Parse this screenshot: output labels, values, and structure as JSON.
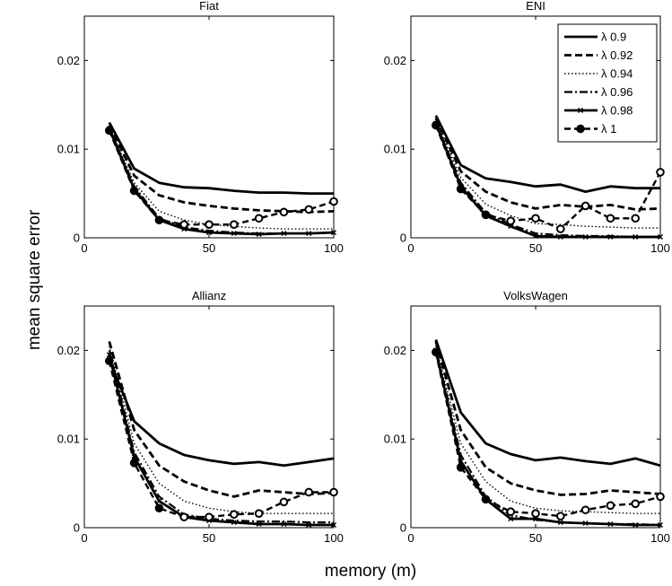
{
  "figure": {
    "ylabel": "mean square error",
    "xlabel": "memory (m)"
  },
  "legend": {
    "placement": "top-right of ENI panel",
    "entries": [
      {
        "label": "λ 0.9",
        "style": "solid-thick"
      },
      {
        "label": "λ 0.92",
        "style": "dashed-thick"
      },
      {
        "label": "λ 0.94",
        "style": "dotted-thin"
      },
      {
        "label": "λ 0.96",
        "style": "dashdot"
      },
      {
        "label": "λ 0.98",
        "style": "solid-x-markers"
      },
      {
        "label": "λ 1",
        "style": "dashed-circle-markers"
      }
    ]
  },
  "chart_data": [
    {
      "type": "line",
      "title": "Fiat",
      "xlim": [
        0,
        100
      ],
      "ylim": [
        0,
        0.025
      ],
      "xticks": [
        "0",
        "50",
        "100"
      ],
      "yticks": [
        "0",
        "0.01",
        "0.02"
      ],
      "x": [
        10,
        20,
        30,
        40,
        50,
        60,
        70,
        80,
        90,
        100
      ],
      "series": [
        {
          "name": "λ 0.9",
          "values": [
            0.013,
            0.0078,
            0.0062,
            0.0057,
            0.0056,
            0.0053,
            0.0051,
            0.0051,
            0.005,
            0.005
          ]
        },
        {
          "name": "λ 0.92",
          "values": [
            0.0127,
            0.007,
            0.0048,
            0.004,
            0.0036,
            0.0033,
            0.0031,
            0.003,
            0.0029,
            0.003
          ]
        },
        {
          "name": "λ 0.94",
          "values": [
            0.0125,
            0.0062,
            0.003,
            0.002,
            0.0015,
            0.0013,
            0.0011,
            0.001,
            0.001,
            0.001
          ]
        },
        {
          "name": "λ 0.96",
          "values": [
            0.0124,
            0.0058,
            0.0022,
            0.0012,
            0.0008,
            0.0006,
            0.0005,
            0.0005,
            0.0005,
            0.0006
          ]
        },
        {
          "name": "λ 0.98",
          "values": [
            0.0123,
            0.0055,
            0.002,
            0.001,
            0.0006,
            0.0005,
            0.0004,
            0.0005,
            0.0005,
            0.0006
          ]
        },
        {
          "name": "λ 1",
          "values": [
            0.0121,
            0.0053,
            0.002,
            0.0015,
            0.0015,
            0.0015,
            0.0022,
            0.0029,
            0.0032,
            0.0041
          ]
        }
      ]
    },
    {
      "type": "line",
      "title": "ENI",
      "xlim": [
        0,
        100
      ],
      "ylim": [
        0,
        0.025
      ],
      "xticks": [
        "0",
        "50",
        "100"
      ],
      "yticks": [
        "0",
        "0.01",
        "0.02"
      ],
      "x": [
        10,
        20,
        30,
        40,
        50,
        60,
        70,
        80,
        90,
        100
      ],
      "series": [
        {
          "name": "λ 0.9",
          "values": [
            0.0138,
            0.0082,
            0.0067,
            0.0063,
            0.0058,
            0.006,
            0.0052,
            0.0058,
            0.0056,
            0.0056
          ]
        },
        {
          "name": "λ 0.92",
          "values": [
            0.0135,
            0.0075,
            0.0052,
            0.004,
            0.0033,
            0.0037,
            0.0035,
            0.0037,
            0.0032,
            0.0033
          ]
        },
        {
          "name": "λ 0.94",
          "values": [
            0.0132,
            0.0068,
            0.0038,
            0.0025,
            0.0016,
            0.0015,
            0.0013,
            0.0012,
            0.0011,
            0.0011
          ]
        },
        {
          "name": "λ 0.96",
          "values": [
            0.013,
            0.0062,
            0.0028,
            0.0015,
            0.0005,
            0.0003,
            0.0002,
            0.0002,
            0.0001,
            0.0001
          ]
        },
        {
          "name": "λ 0.98",
          "values": [
            0.0129,
            0.0058,
            0.0025,
            0.0013,
            0.0002,
            0.0001,
            0.0001,
            0.0001,
            0.0001,
            0.0001
          ]
        },
        {
          "name": "λ 1",
          "values": [
            0.0127,
            0.0055,
            0.0026,
            0.0019,
            0.0022,
            0.001,
            0.0036,
            0.0022,
            0.0022,
            0.0074
          ]
        }
      ]
    },
    {
      "type": "line",
      "title": "Allianz",
      "xlim": [
        0,
        100
      ],
      "ylim": [
        0,
        0.025
      ],
      "xticks": [
        "0",
        "50",
        "100"
      ],
      "yticks": [
        "0",
        "0.01",
        "0.02"
      ],
      "x": [
        10,
        20,
        30,
        40,
        50,
        60,
        70,
        80,
        90,
        100
      ],
      "series": [
        {
          "name": "λ 0.9",
          "values": [
            0.019,
            0.012,
            0.0095,
            0.0082,
            0.0076,
            0.0072,
            0.0074,
            0.007,
            0.0074,
            0.0078
          ]
        },
        {
          "name": "λ 0.92",
          "values": [
            0.021,
            0.011,
            0.007,
            0.0052,
            0.0042,
            0.0035,
            0.0042,
            0.004,
            0.0038,
            0.0039
          ]
        },
        {
          "name": "λ 0.94",
          "values": [
            0.0205,
            0.0095,
            0.005,
            0.003,
            0.0022,
            0.0018,
            0.0016,
            0.0016,
            0.0016,
            0.0016
          ]
        },
        {
          "name": "λ 0.96",
          "values": [
            0.02,
            0.0085,
            0.0035,
            0.0015,
            0.001,
            0.0008,
            0.0007,
            0.0007,
            0.0006,
            0.0006
          ]
        },
        {
          "name": "λ 0.98",
          "values": [
            0.0195,
            0.008,
            0.003,
            0.0012,
            0.0008,
            0.0006,
            0.0004,
            0.0004,
            0.0003,
            0.0003
          ]
        },
        {
          "name": "λ 1",
          "values": [
            0.0188,
            0.0073,
            0.0022,
            0.0012,
            0.0012,
            0.0015,
            0.0016,
            0.0029,
            0.004,
            0.004
          ]
        }
      ]
    },
    {
      "type": "line",
      "title": "VolksWagen",
      "xlim": [
        0,
        100
      ],
      "ylim": [
        0,
        0.025
      ],
      "xticks": [
        "0",
        "50",
        "100"
      ],
      "yticks": [
        "0",
        "0.01",
        "0.02"
      ],
      "x": [
        10,
        20,
        30,
        40,
        50,
        60,
        70,
        80,
        90,
        100
      ],
      "series": [
        {
          "name": "λ 0.9",
          "values": [
            0.0212,
            0.013,
            0.0095,
            0.0083,
            0.0076,
            0.0079,
            0.0075,
            0.0072,
            0.0078,
            0.007
          ]
        },
        {
          "name": "λ 0.92",
          "values": [
            0.021,
            0.011,
            0.0068,
            0.005,
            0.0042,
            0.0037,
            0.0038,
            0.0042,
            0.004,
            0.0038
          ]
        },
        {
          "name": "λ 0.94",
          "values": [
            0.0205,
            0.0095,
            0.0052,
            0.003,
            0.0022,
            0.0019,
            0.0018,
            0.0017,
            0.0016,
            0.0016
          ]
        },
        {
          "name": "λ 0.96",
          "values": [
            0.0202,
            0.0082,
            0.0035,
            0.0014,
            0.0009,
            0.0006,
            0.0005,
            0.0004,
            0.0004,
            0.0003
          ]
        },
        {
          "name": "λ 0.98",
          "values": [
            0.02,
            0.0075,
            0.0032,
            0.001,
            0.001,
            0.0006,
            0.0005,
            0.0004,
            0.0003,
            0.0003
          ]
        },
        {
          "name": "λ 1",
          "values": [
            0.0198,
            0.0068,
            0.0032,
            0.0018,
            0.0016,
            0.0013,
            0.002,
            0.0025,
            0.0027,
            0.0035
          ]
        }
      ]
    }
  ]
}
